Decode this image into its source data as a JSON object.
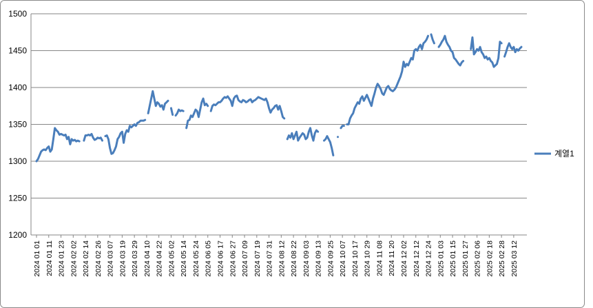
{
  "chart_data": {
    "type": "line",
    "categories": [
      "2024 01 01",
      null,
      null,
      null,
      null,
      null,
      null,
      null,
      "2024 01 11",
      null,
      null,
      null,
      null,
      null,
      null,
      null,
      "2024 01 23",
      null,
      null,
      null,
      null,
      null,
      null,
      null,
      "2024 02 02",
      null,
      null,
      null,
      null,
      null,
      null,
      null,
      "2024 02 14",
      null,
      null,
      null,
      null,
      null,
      null,
      null,
      "2024 02 26",
      null,
      null,
      null,
      null,
      null,
      null,
      null,
      "2024 03 07",
      null,
      null,
      null,
      null,
      null,
      null,
      null,
      "2024 03 19",
      null,
      null,
      null,
      null,
      null,
      null,
      null,
      "2024 03 29",
      null,
      null,
      null,
      null,
      null,
      null,
      null,
      "2024 04 10",
      null,
      null,
      null,
      null,
      null,
      null,
      null,
      "2024 04 22",
      null,
      null,
      null,
      null,
      null,
      null,
      null,
      "2024 05 02",
      null,
      null,
      null,
      null,
      null,
      null,
      null,
      "2024 05 14",
      null,
      null,
      null,
      null,
      null,
      null,
      null,
      "2024 05 24",
      null,
      null,
      null,
      null,
      null,
      null,
      null,
      "2024 06 05",
      null,
      null,
      null,
      null,
      null,
      null,
      null,
      "2024 06 17",
      null,
      null,
      null,
      null,
      null,
      null,
      null,
      "2024 06 27",
      null,
      null,
      null,
      null,
      null,
      null,
      null,
      "2024 07 09",
      null,
      null,
      null,
      null,
      null,
      null,
      null,
      "2024 07 19",
      null,
      null,
      null,
      null,
      null,
      null,
      null,
      "2024 07 31",
      null,
      null,
      null,
      null,
      null,
      null,
      null,
      "2024 08 12",
      null,
      null,
      null,
      null,
      null,
      null,
      null,
      "2024 08 22",
      null,
      null,
      null,
      null,
      null,
      null,
      null,
      "2024 09 03",
      null,
      null,
      null,
      null,
      null,
      null,
      null,
      "2024 09 13",
      null,
      null,
      null,
      null,
      null,
      null,
      null,
      "2024 09 25",
      null,
      null,
      null,
      null,
      null,
      null,
      null,
      "2024 10 07",
      null,
      null,
      null,
      null,
      null,
      null,
      null,
      "2024 10 17",
      null,
      null,
      null,
      null,
      null,
      null,
      null,
      "2024 10 29",
      null,
      null,
      null,
      null,
      null,
      null,
      null,
      "2024 11 08",
      null,
      null,
      null,
      null,
      null,
      null,
      null,
      "2024 11 20",
      null,
      null,
      null,
      null,
      null,
      null,
      null,
      "2024 12 02",
      null,
      null,
      null,
      null,
      null,
      null,
      null,
      "2024 12 12",
      null,
      null,
      null,
      null,
      null,
      null,
      null,
      "2024 12 24",
      null,
      null,
      null,
      null,
      null,
      null,
      null,
      "2025 01 03",
      null,
      null,
      null,
      null,
      null,
      null,
      null,
      "2025 01 15",
      null,
      null,
      null,
      null,
      null,
      null,
      null,
      "2025 01 27",
      null,
      null,
      null,
      null,
      null,
      null,
      null,
      "2025 02 06",
      null,
      null,
      null,
      null,
      null,
      null,
      null,
      "2025 02 18",
      null,
      null,
      null,
      null,
      null,
      null,
      null,
      "2025 02 28",
      null,
      null,
      null,
      null,
      null,
      null,
      null,
      "2025 03 12",
      null,
      null,
      null,
      null,
      null
    ],
    "series": [
      {
        "name": "계열1",
        "color": "#4a7ebb",
        "values": [
          1300,
          1303,
          1308,
          1313,
          1315,
          1316,
          1315,
          1318,
          1320,
          1313,
          1316,
          1330,
          1345,
          1342,
          1340,
          1336,
          1337,
          1336,
          1335,
          1336,
          1330,
          1333,
          1323,
          1330,
          1328,
          1329,
          1327,
          1328,
          1327,
          null,
          null,
          1328,
          1335,
          1335,
          1336,
          1335,
          1337,
          1332,
          1329,
          1330,
          1332,
          1331,
          1332,
          1328,
          null,
          1334,
          1335,
          1330,
          1318,
          1310,
          1311,
          1315,
          1320,
          1330,
          1333,
          1338,
          1340,
          1325,
          1337,
          1342,
          1340,
          1348,
          1346,
          1348,
          1350,
          1348,
          1352,
          1353,
          1355,
          1355,
          1355,
          1356,
          null,
          1365,
          1375,
          1385,
          1395,
          1385,
          1375,
          1380,
          1378,
          1374,
          1376,
          1370,
          1378,
          1380,
          1382,
          null,
          1372,
          1363,
          null,
          1362,
          1365,
          1370,
          1368,
          1369,
          1368,
          null,
          1345,
          1355,
          1356,
          1362,
          1360,
          1365,
          1370,
          1368,
          1360,
          1370,
          1380,
          1385,
          1376,
          1378,
          1375,
          null,
          1368,
          1375,
          1377,
          1376,
          1378,
          1380,
          1380,
          1382,
          1385,
          1387,
          1386,
          1388,
          1385,
          1382,
          1375,
          1385,
          1388,
          1389,
          1383,
          1381,
          1380,
          1383,
          1382,
          1380,
          1381,
          1383,
          1384,
          1380,
          1382,
          1383,
          1385,
          1387,
          1386,
          1385,
          1384,
          1383,
          1385,
          1380,
          1372,
          1366,
          1370,
          1372,
          1375,
          1376,
          1370,
          1375,
          1368,
          1360,
          1358,
          null,
          1330,
          1335,
          1332,
          1338,
          1330,
          1335,
          1340,
          1328,
          1332,
          1335,
          1338,
          1336,
          1330,
          1332,
          1340,
          1345,
          1335,
          1328,
          1338,
          1342,
          1340,
          null,
          null,
          null,
          1328,
          1330,
          1334,
          1330,
          1326,
          1318,
          1308,
          null,
          null,
          1333,
          null,
          1345,
          1348,
          1348,
          null,
          1350,
          1350,
          1358,
          1362,
          1365,
          1372,
          1376,
          1380,
          1378,
          1385,
          1388,
          1382,
          1386,
          1390,
          1385,
          1380,
          1375,
          1385,
          1392,
          1400,
          1405,
          1402,
          1398,
          1392,
          1390,
          1395,
          1400,
          1402,
          1398,
          1396,
          1395,
          1397,
          1400,
          1405,
          1410,
          1415,
          1422,
          1435,
          1428,
          1432,
          1430,
          1435,
          1440,
          1438,
          1450,
          1452,
          1450,
          1455,
          1458,
          1452,
          1460,
          1462,
          1465,
          1470,
          null,
          1472,
          1465,
          1460,
          null,
          null,
          1455,
          1458,
          1462,
          1465,
          1470,
          1462,
          1458,
          1455,
          1450,
          1448,
          1440,
          1438,
          1435,
          1432,
          1430,
          1434,
          1436,
          null,
          null,
          null,
          null,
          1452,
          1468,
          1445,
          1448,
          1452,
          1450,
          1455,
          1448,
          1445,
          1440,
          1442,
          1438,
          1440,
          1436,
          1434,
          1428,
          1430,
          1432,
          1440,
          1462,
          1460,
          null,
          1442,
          1448,
          1455,
          1460,
          1455,
          1452,
          1455,
          1448,
          1452,
          1450,
          1453,
          1455
        ]
      }
    ],
    "ylim": [
      1200,
      1500
    ],
    "yticks": [
      1200,
      1250,
      1300,
      1350,
      1400,
      1450,
      1500
    ],
    "grid": true,
    "legend": "right"
  }
}
